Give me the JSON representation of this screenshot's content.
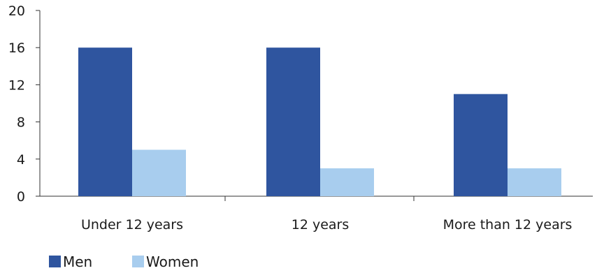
{
  "chart_data": {
    "type": "bar",
    "categories": [
      "Under 12 years",
      "12 years",
      "More than 12 years"
    ],
    "series": [
      {
        "name": "Men",
        "values": [
          16,
          16,
          11
        ],
        "color": "#2f559f"
      },
      {
        "name": "Women",
        "values": [
          5,
          3,
          3
        ],
        "color": "#a8cdee"
      }
    ],
    "ylim": [
      0,
      20
    ],
    "yticks": [
      0,
      4,
      8,
      12,
      16,
      20
    ],
    "grid": false,
    "legend": "bottom-left"
  }
}
